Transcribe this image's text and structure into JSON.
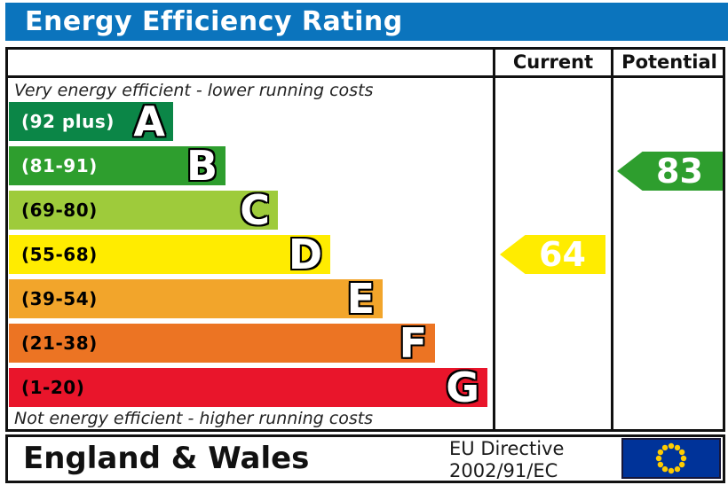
{
  "title": "Energy Efficiency Rating",
  "colors": {
    "title_bg": "#0b74bd",
    "border": "#111111",
    "eu_flag_bg": "#003399",
    "eu_star": "#ffcc00"
  },
  "table": {
    "current_header": "Current",
    "potential_header": "Potential"
  },
  "notes": {
    "top": "Very energy efficient - lower running costs",
    "bottom": "Not energy efficient - higher running costs"
  },
  "bands": [
    {
      "letter": "A",
      "range": "(92 plus)",
      "color": "#0b8647",
      "label_color": "#ffffff"
    },
    {
      "letter": "B",
      "range": "(81-91)",
      "color": "#2e9e2e",
      "label_color": "#ffffff"
    },
    {
      "letter": "C",
      "range": "(69-80)",
      "color": "#9ecb3b",
      "label_color": "#000000"
    },
    {
      "letter": "D",
      "range": "(55-68)",
      "color": "#ffec00",
      "label_color": "#000000"
    },
    {
      "letter": "E",
      "range": "(39-54)",
      "color": "#f2a52b",
      "label_color": "#000000"
    },
    {
      "letter": "F",
      "range": "(21-38)",
      "color": "#ec7423",
      "label_color": "#000000"
    },
    {
      "letter": "G",
      "range": "(1-20)",
      "color": "#e9152b",
      "label_color": "#000000"
    }
  ],
  "ratings": {
    "current": {
      "value": "64",
      "band": "D",
      "arrow_color": "#ffec00",
      "text_color": "#ffffff"
    },
    "potential": {
      "value": "83",
      "band": "B",
      "arrow_color": "#2e9e2e",
      "text_color": "#ffffff"
    }
  },
  "footer": {
    "region": "England & Wales",
    "directive_line1": "EU Directive",
    "directive_line2": "2002/91/EC"
  },
  "chart_data": {
    "type": "bar",
    "title": "Energy Efficiency Rating",
    "categories": [
      "A (92 plus)",
      "B (81-91)",
      "C (69-80)",
      "D (55-68)",
      "E (39-54)",
      "F (21-38)",
      "G (1-20)"
    ],
    "band_colors": [
      "#0b8647",
      "#2e9e2e",
      "#9ecb3b",
      "#ffec00",
      "#f2a52b",
      "#ec7423",
      "#e9152b"
    ],
    "series": [
      {
        "name": "Current",
        "value": 64,
        "band": "D"
      },
      {
        "name": "Potential",
        "value": 83,
        "band": "B"
      }
    ],
    "annotations": [
      "Very energy efficient - lower running costs",
      "Not energy efficient - higher running costs"
    ],
    "region": "England & Wales",
    "directive": "EU Directive 2002/91/EC",
    "legend_position": "columns-right",
    "grid": false
  }
}
